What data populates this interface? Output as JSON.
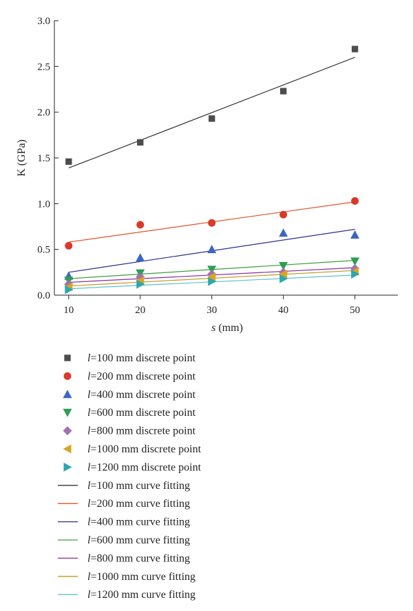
{
  "chart_data": {
    "type": "scatter",
    "xlabel_italic": "s",
    "xlabel_unit": " (mm)",
    "ylabel": "K (GPa)",
    "xlim": [
      8,
      56
    ],
    "ylim": [
      0,
      3.0
    ],
    "x_ticks": [
      10,
      20,
      30,
      40,
      50
    ],
    "y_ticks": [
      0.0,
      0.5,
      1.0,
      1.5,
      2.0,
      2.5,
      3.0
    ],
    "y_tick_labels": [
      "0.0",
      "0.5",
      "1.0",
      "1.5",
      "2.0",
      "2.5",
      "3.0"
    ],
    "x": [
      10,
      20,
      30,
      40,
      50
    ],
    "legend_placement": "below",
    "series": [
      {
        "name": "l=100 mm discrete point",
        "legend_italic": "l",
        "legend_rest": "=100 mm discrete point",
        "marker": "square",
        "color": "#4d4d4d",
        "values": [
          1.46,
          1.67,
          1.93,
          2.23,
          2.69
        ]
      },
      {
        "name": "l=200 mm discrete point",
        "legend_italic": "l",
        "legend_rest": "=200 mm discrete point",
        "marker": "circle",
        "color": "#d93a2b",
        "values": [
          0.54,
          0.77,
          0.79,
          0.88,
          1.03
        ]
      },
      {
        "name": "l=400 mm discrete point",
        "legend_italic": "l",
        "legend_rest": "=400 mm discrete point",
        "marker": "triangle-up",
        "color": "#3a67c2",
        "values": [
          0.21,
          0.41,
          0.5,
          0.68,
          0.66
        ]
      },
      {
        "name": "l=600 mm discrete point",
        "legend_italic": "l",
        "legend_rest": "=600 mm discrete point",
        "marker": "triangle-down",
        "color": "#2e9e54",
        "values": [
          0.16,
          0.24,
          0.28,
          0.32,
          0.37
        ]
      },
      {
        "name": "l=800 mm discrete point",
        "legend_italic": "l",
        "legend_rest": "=800 mm discrete point",
        "marker": "diamond",
        "color": "#a070b0",
        "values": [
          0.12,
          0.2,
          0.23,
          0.25,
          0.29
        ]
      },
      {
        "name": "l=1000 mm discrete point",
        "legend_italic": "l",
        "legend_rest": "=1000 mm discrete point",
        "marker": "triangle-left",
        "color": "#d9a521",
        "values": [
          0.09,
          0.16,
          0.2,
          0.23,
          0.26
        ]
      },
      {
        "name": "l=1200 mm discrete point",
        "legend_italic": "l",
        "legend_rest": "=1200 mm discrete point",
        "marker": "triangle-right",
        "color": "#2aa8b0",
        "values": [
          0.06,
          0.12,
          0.15,
          0.18,
          0.23
        ]
      }
    ],
    "fits": [
      {
        "name": "l=100 mm curve fitting",
        "legend_italic": "l",
        "legend_rest": "=100 mm curve fitting",
        "color": "#333333",
        "values": [
          1.39,
          2.6
        ]
      },
      {
        "name": "l=200 mm curve fitting",
        "legend_italic": "l",
        "legend_rest": "=200 mm curve fitting",
        "color": "#e0502a",
        "values": [
          0.58,
          1.02
        ]
      },
      {
        "name": "l=400 mm curve fitting",
        "legend_italic": "l",
        "legend_rest": "=400 mm curve fitting",
        "color": "#2a2a8f",
        "values": [
          0.25,
          0.72
        ]
      },
      {
        "name": "l=600 mm curve fitting",
        "legend_italic": "l",
        "legend_rest": "=600 mm curve fitting",
        "color": "#3a9e3a",
        "values": [
          0.18,
          0.38
        ]
      },
      {
        "name": "l=800 mm curve fitting",
        "legend_italic": "l",
        "legend_rest": "=800 mm curve fitting",
        "color": "#8a2a9e",
        "values": [
          0.14,
          0.3
        ]
      },
      {
        "name": "l=1000 mm curve fitting",
        "legend_italic": "l",
        "legend_rest": "=1000 mm curve fitting",
        "color": "#c9961a",
        "values": [
          0.1,
          0.27
        ]
      },
      {
        "name": "l=1200 mm curve fitting",
        "legend_italic": "l",
        "legend_rest": "=1200 mm curve fitting",
        "color": "#5cc0cc",
        "values": [
          0.07,
          0.22
        ]
      }
    ],
    "fit_x": [
      10,
      50
    ]
  }
}
